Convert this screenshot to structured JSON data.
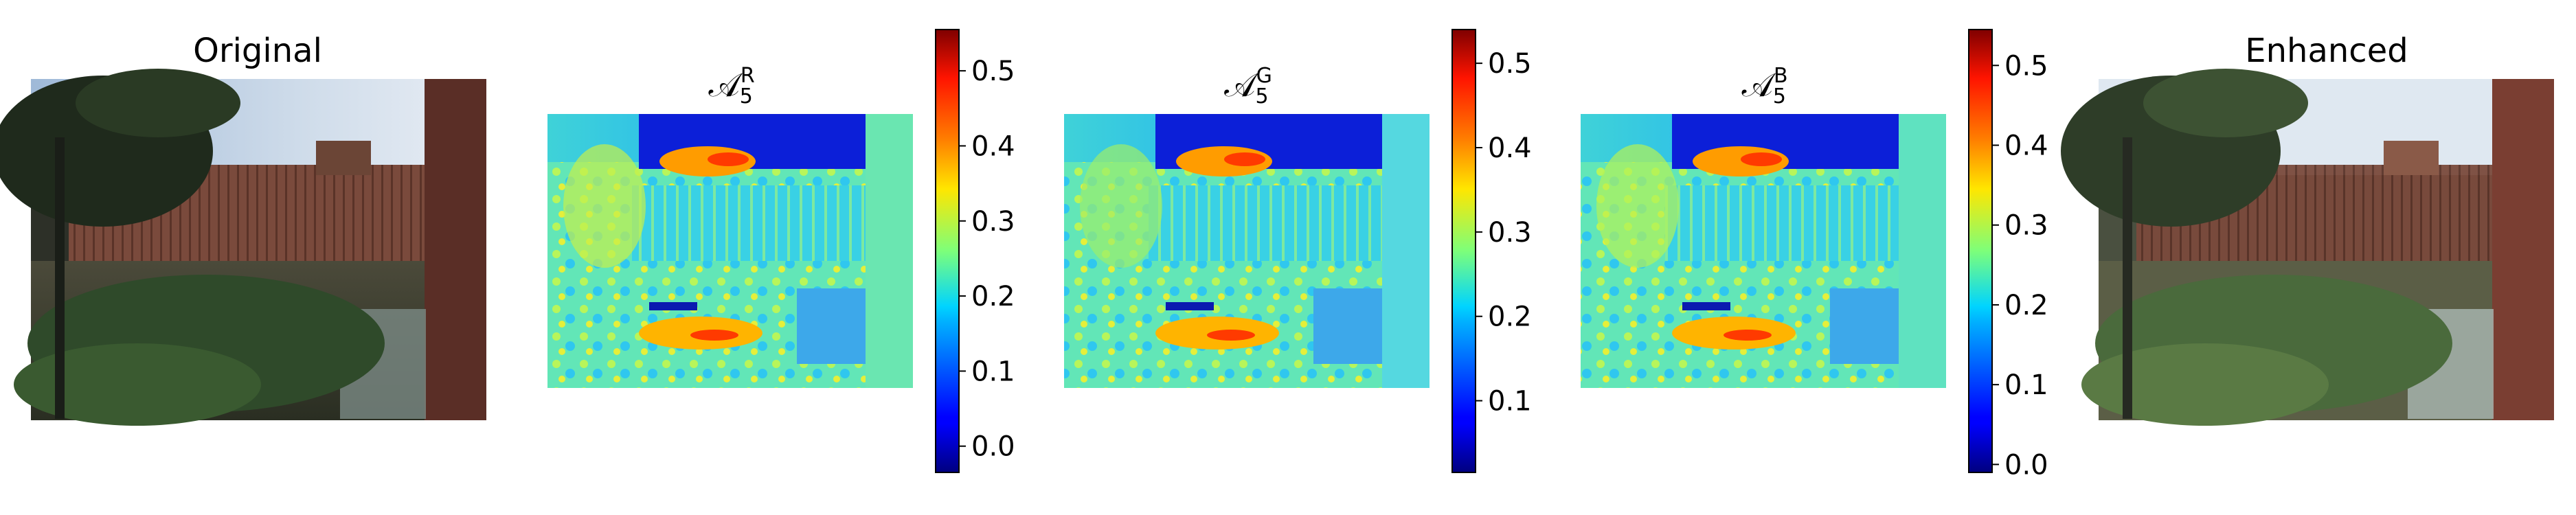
{
  "panels": [
    {
      "id": "original",
      "title": "Original",
      "kind": "photo"
    },
    {
      "id": "map-r",
      "title_base": "𝒜",
      "title_sub": "5",
      "title_sup": "R",
      "kind": "heatmap",
      "colorbar": {
        "ticks": [
          "0.0",
          "0.1",
          "0.2",
          "0.3",
          "0.4",
          "0.5"
        ],
        "tick_values": [
          0.0,
          0.1,
          0.2,
          0.3,
          0.4,
          0.5
        ],
        "range": [
          -0.035,
          0.555
        ]
      }
    },
    {
      "id": "map-g",
      "title_base": "𝒜",
      "title_sub": "5",
      "title_sup": "G",
      "kind": "heatmap",
      "colorbar": {
        "ticks": [
          "0.1",
          "0.2",
          "0.3",
          "0.4",
          "0.5"
        ],
        "tick_values": [
          0.1,
          0.2,
          0.3,
          0.4,
          0.5
        ],
        "range": [
          0.015,
          0.54
        ]
      }
    },
    {
      "id": "map-b",
      "title_base": "𝒜",
      "title_sub": "5",
      "title_sup": "B",
      "kind": "heatmap",
      "colorbar": {
        "ticks": [
          "0.0",
          "0.1",
          "0.2",
          "0.3",
          "0.4",
          "0.5"
        ],
        "tick_values": [
          0.0,
          0.1,
          0.2,
          0.3,
          0.4,
          0.5
        ],
        "range": [
          -0.01,
          0.545
        ]
      }
    },
    {
      "id": "enhanced",
      "title": "Enhanced",
      "kind": "photo"
    }
  ],
  "colormap": "jet"
}
